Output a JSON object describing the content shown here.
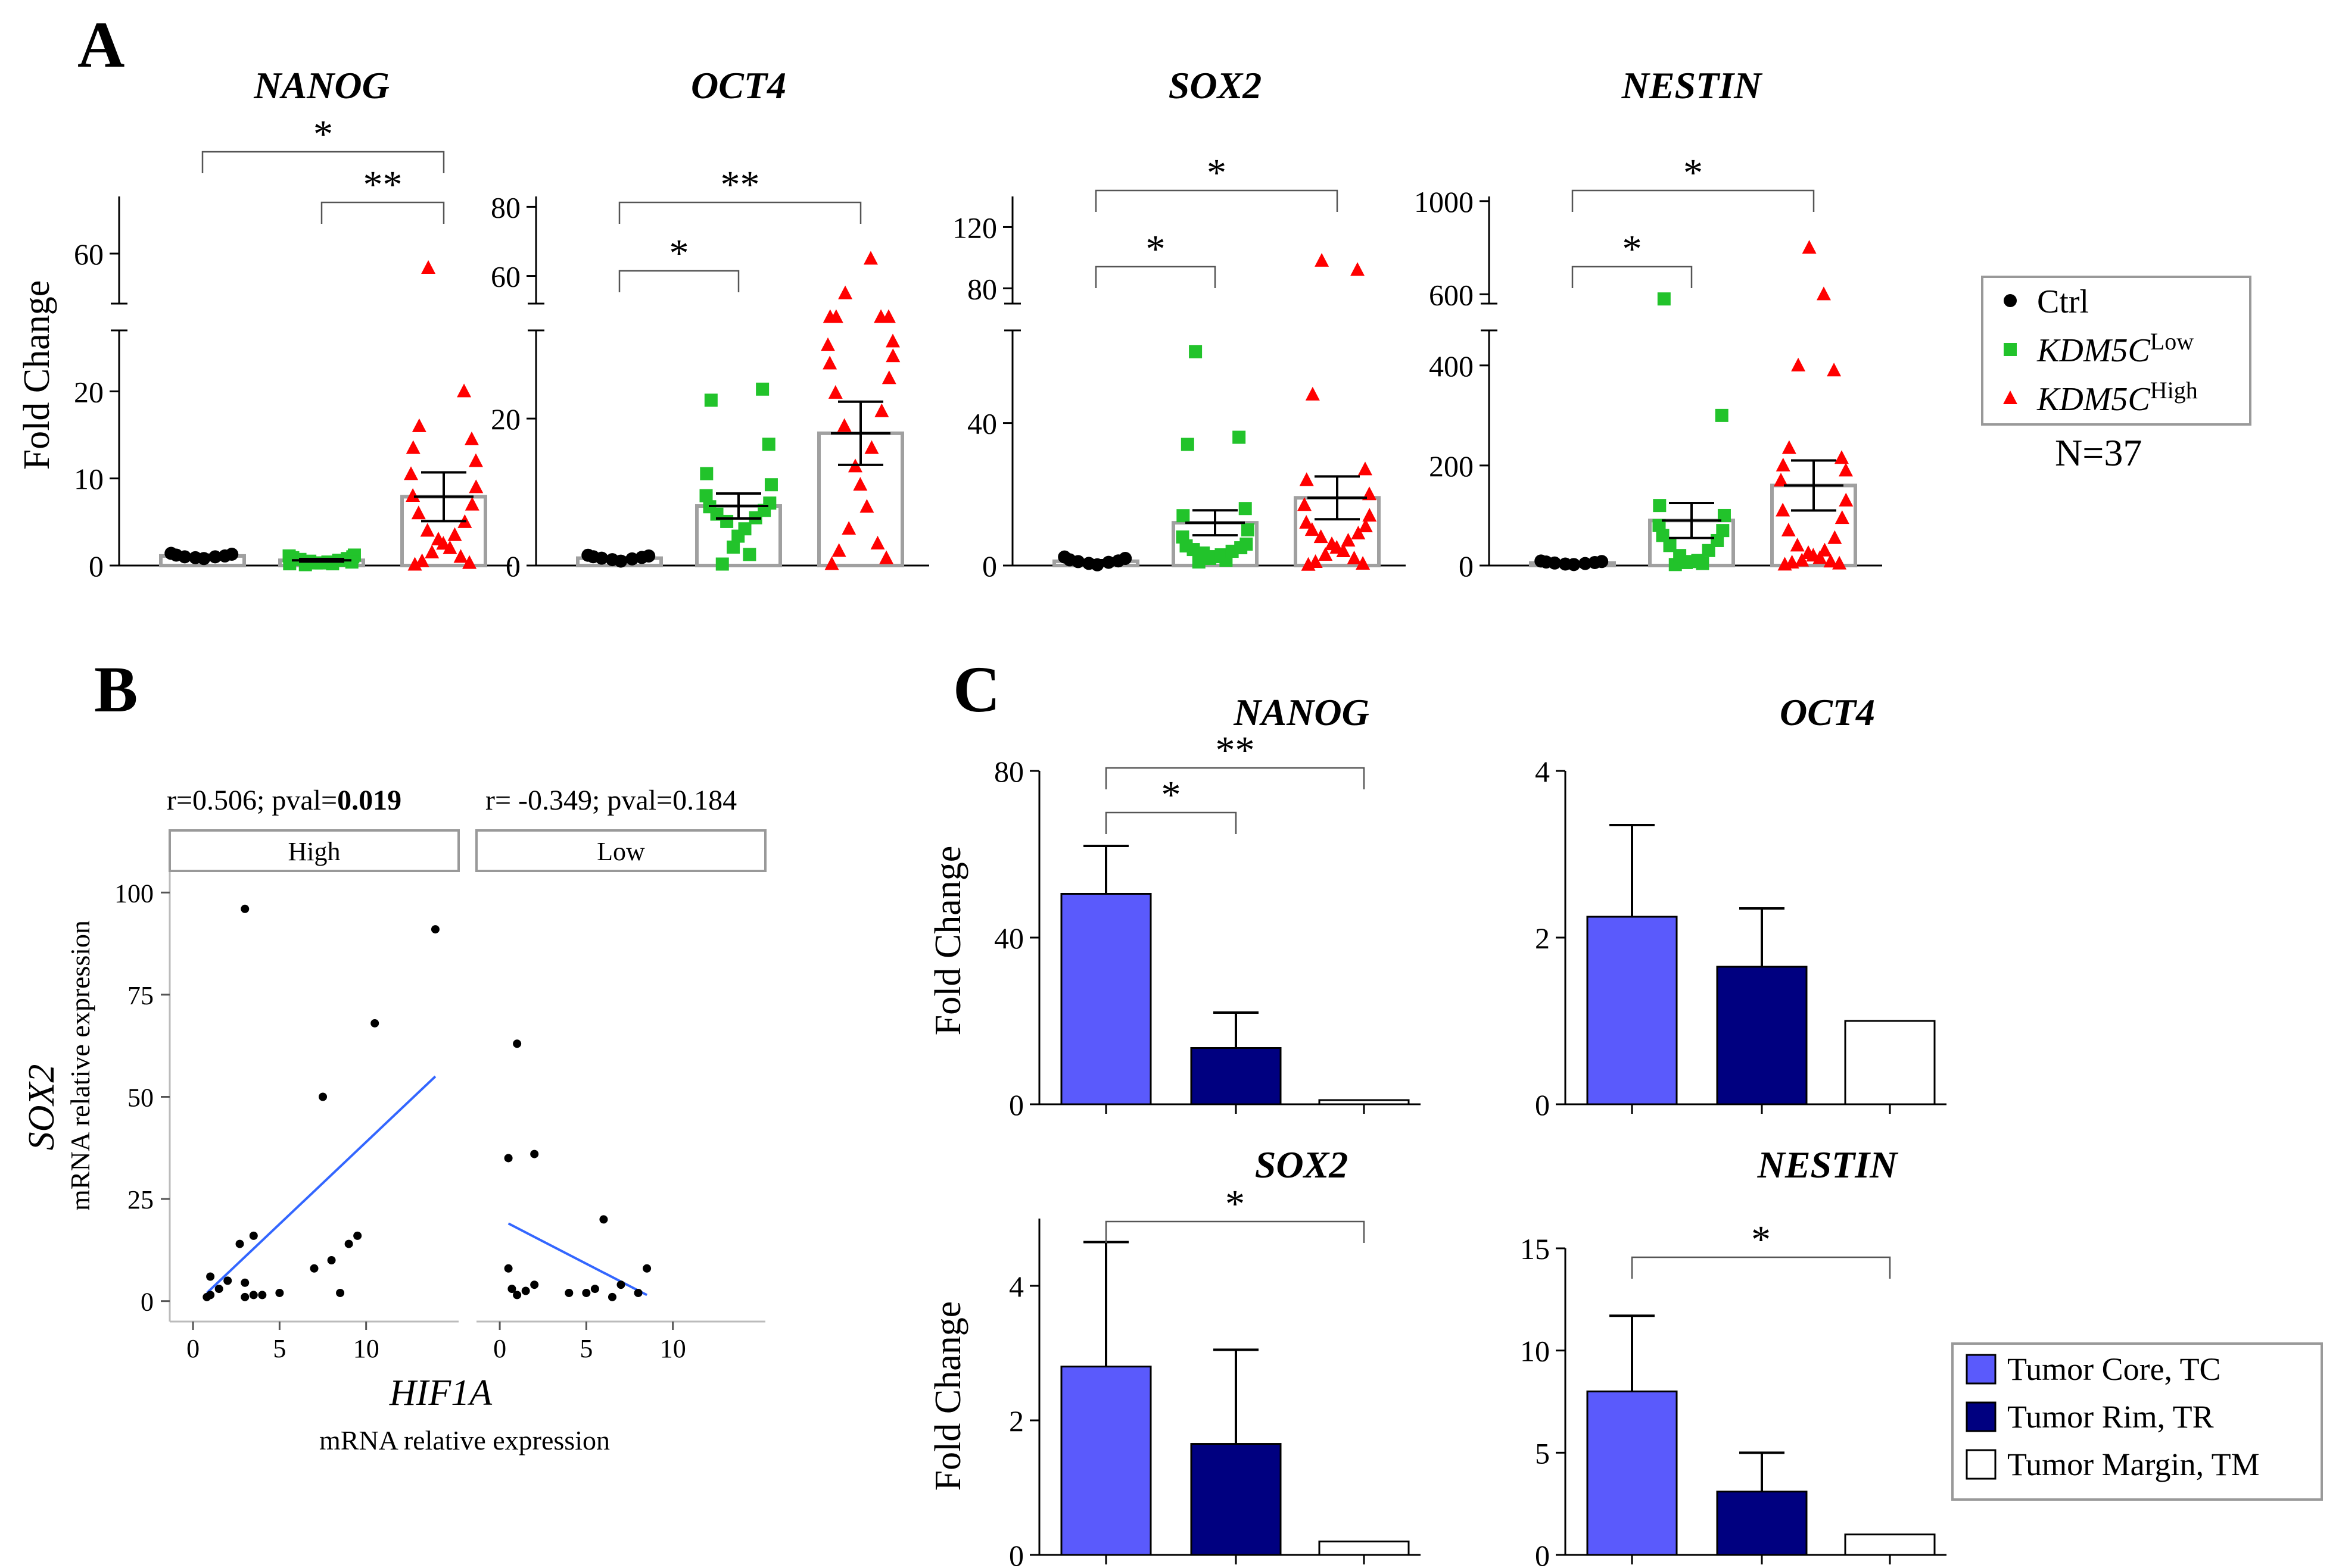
{
  "panelA": {
    "letter": "A",
    "ylabel": "Fold Change",
    "groups": [
      "Ctrl",
      "KDM5C Low",
      "KDM5C High"
    ],
    "legend": {
      "items": [
        {
          "label": "Ctrl",
          "base": "Ctrl",
          "sup": "",
          "marker": "circle",
          "color": "#000000"
        },
        {
          "label": "KDM5C Low",
          "base": "KDM5C",
          "sup": "Low",
          "marker": "square",
          "color": "#22c32b"
        },
        {
          "label": "KDM5C High",
          "base": "KDM5C",
          "sup": "High",
          "marker": "triangle",
          "color": "#ff0000"
        }
      ],
      "n_label": "N=37"
    },
    "charts": [
      {
        "title": "NANOG",
        "lower": {
          "range": [
            0,
            27
          ],
          "ticks": [
            0,
            10,
            20
          ]
        },
        "upper": {
          "range": [
            53,
            68
          ],
          "ticks": [
            60
          ]
        },
        "bar_means": [
          1.1,
          0.6,
          7.9
        ],
        "sem": [
          0.15,
          0.15,
          2.8
        ],
        "points": [
          [
            0.8,
            0.9,
            1.0,
            1.0,
            1.1,
            1.2,
            1.3,
            1.4
          ],
          [
            0.1,
            0.2,
            0.3,
            0.3,
            0.4,
            0.5,
            0.6,
            0.7,
            0.8,
            0.9,
            1.0,
            1.1,
            1.2,
            0.2,
            0.4
          ],
          [
            0.1,
            0.3,
            0.5,
            1.0,
            1.5,
            2.0,
            2.5,
            3.0,
            3.5,
            4.0,
            5.0,
            6.0,
            7.0,
            8.0,
            9.0,
            10.5,
            12.0,
            13.5,
            14.5,
            16.0,
            20.0,
            58.0
          ]
        ],
        "brackets": [
          {
            "from": 0,
            "to": 2,
            "label": "*"
          },
          {
            "from": 1,
            "to": 2,
            "label": "**"
          }
        ]
      },
      {
        "title": "OCT4",
        "lower": {
          "range": [
            0,
            32
          ],
          "ticks": [
            0,
            20
          ]
        },
        "upper": {
          "range": [
            52,
            83
          ],
          "ticks": [
            60,
            80
          ]
        },
        "bar_means": [
          1.0,
          8.1,
          18.0
        ],
        "sem": [
          0.1,
          1.7,
          4.3
        ],
        "points": [
          [
            0.6,
            0.8,
            0.9,
            1.0,
            1.1,
            1.2,
            1.3,
            1.4
          ],
          [
            0.2,
            1.5,
            2.5,
            4.0,
            5.0,
            6.0,
            6.5,
            7.0,
            7.5,
            8.0,
            8.5,
            9.5,
            11.0,
            12.5,
            16.5,
            22.5,
            24.0
          ],
          [
            0.2,
            1.0,
            2.0,
            3.0,
            5.0,
            8.0,
            11.0,
            13.5,
            16.0,
            19.0,
            21.0,
            23.5,
            25.5,
            27.5,
            28.5,
            30.0,
            30.5,
            33.0,
            35.0,
            43.0,
            50.0,
            55.0,
            65.0
          ]
        ],
        "brackets": [
          {
            "from": 0,
            "to": 1,
            "label": "*"
          },
          {
            "from": 0,
            "to": 2,
            "label": "**"
          }
        ]
      },
      {
        "title": "SOX2",
        "lower": {
          "range": [
            0,
            66
          ],
          "ticks": [
            0,
            40
          ]
        },
        "upper": {
          "range": [
            70,
            140
          ],
          "ticks": [
            80,
            120
          ]
        },
        "bar_means": [
          1.2,
          12.0,
          19.0
        ],
        "sem": [
          0.3,
          3.5,
          6.0
        ],
        "points": [
          [
            0.2,
            0.6,
            0.9,
            1.1,
            1.3,
            1.6,
            2.0,
            2.4
          ],
          [
            1.0,
            1.5,
            2.0,
            2.5,
            3.0,
            3.5,
            4.0,
            4.5,
            5.0,
            5.5,
            6.0,
            8.0,
            10.0,
            14.0,
            16.0,
            34.0,
            36.0,
            60.0
          ],
          [
            0.2,
            0.5,
            1.0,
            2.0,
            3.0,
            4.0,
            5.0,
            6.0,
            7.0,
            8.0,
            9.0,
            10.0,
            11.0,
            12.0,
            14.0,
            17.0,
            20.0,
            24.0,
            27.0,
            48.0,
            92.0,
            98.0
          ]
        ],
        "brackets": [
          {
            "from": 0,
            "to": 1,
            "label": "*"
          },
          {
            "from": 0,
            "to": 2,
            "label": "*"
          }
        ]
      },
      {
        "title": "NESTIN",
        "lower": {
          "range": [
            0,
            470
          ],
          "ticks": [
            0,
            200,
            400
          ]
        },
        "upper": {
          "range": [
            560,
            1020
          ],
          "ticks": [
            600,
            1000
          ]
        },
        "bar_means": [
          5,
          90,
          160
        ],
        "sem": [
          1,
          35,
          50
        ],
        "points": [
          [
            2,
            3,
            4,
            5,
            6,
            7,
            8,
            9
          ],
          [
            2,
            4,
            6,
            8,
            10,
            20,
            30,
            40,
            50,
            60,
            70,
            80,
            100,
            120,
            300,
            580
          ],
          [
            2,
            4,
            6,
            8,
            10,
            15,
            20,
            25,
            30,
            40,
            55,
            70,
            95,
            110,
            130,
            170,
            190,
            200,
            215,
            235,
            390,
            400,
            600,
            800
          ]
        ],
        "brackets": [
          {
            "from": 0,
            "to": 1,
            "label": "*"
          },
          {
            "from": 0,
            "to": 2,
            "label": "*"
          }
        ]
      }
    ]
  },
  "panelB": {
    "letter": "B",
    "stats": [
      {
        "prefix": "r=0.506; pval=",
        "bold": "0.019"
      },
      {
        "prefix": "r= -0.349; pval=0.184",
        "bold": ""
      }
    ],
    "facets": [
      "High",
      "Low"
    ],
    "y_label_gene": "SOX2",
    "y_label_sub": "mRNA relative expression",
    "x_label_gene": "HIF1A",
    "x_label_sub": "mRNA relative expression",
    "y_ticks": [
      0,
      25,
      50,
      75,
      100
    ],
    "x_ticks": [
      0,
      5,
      10
    ],
    "y_range": [
      -5,
      105
    ],
    "x_range": [
      -1,
      15
    ],
    "high_points": [
      [
        0.8,
        1.0
      ],
      [
        1.0,
        1.5
      ],
      [
        1.0,
        6.0
      ],
      [
        1.5,
        3.0
      ],
      [
        2.0,
        5.0
      ],
      [
        2.7,
        14.0
      ],
      [
        3.0,
        4.5
      ],
      [
        3.0,
        1.0
      ],
      [
        3.5,
        16.0
      ],
      [
        3.5,
        1.5
      ],
      [
        4.0,
        1.5
      ],
      [
        5.0,
        2.0
      ],
      [
        3.0,
        96.0
      ],
      [
        7.0,
        8.0
      ],
      [
        7.5,
        50.0
      ],
      [
        8.0,
        10.0
      ],
      [
        8.5,
        2.0
      ],
      [
        9.0,
        14.0
      ],
      [
        9.5,
        16.0
      ],
      [
        10.5,
        68.0
      ],
      [
        14.0,
        91.0
      ]
    ],
    "high_fit": [
      [
        0.8,
        2.0
      ],
      [
        14.0,
        55.0
      ]
    ],
    "low_points": [
      [
        0.5,
        8.0
      ],
      [
        0.5,
        35.0
      ],
      [
        0.7,
        3.0
      ],
      [
        1.0,
        63.0
      ],
      [
        1.0,
        1.5
      ],
      [
        1.5,
        2.5
      ],
      [
        2.0,
        36.0
      ],
      [
        2.0,
        4.0
      ],
      [
        4.0,
        2.0
      ],
      [
        5.0,
        2.0
      ],
      [
        5.5,
        3.0
      ],
      [
        6.0,
        20.0
      ],
      [
        6.5,
        1.0
      ],
      [
        7.0,
        4.0
      ],
      [
        8.0,
        2.0
      ],
      [
        8.5,
        8.0
      ]
    ],
    "low_fit": [
      [
        0.5,
        19.0
      ],
      [
        8.5,
        1.5
      ]
    ]
  },
  "panelC": {
    "letter": "C",
    "ylabel": "Fold Change",
    "categories": [
      "Tumor Core, TC",
      "Tumor Rim, TR",
      "Tumor Margin, TM"
    ],
    "colors": [
      "#5a5afc",
      "#000080",
      "#ffffff"
    ],
    "charts": [
      {
        "title": "NANOG",
        "range": [
          0,
          80
        ],
        "ticks": [
          0,
          40,
          80
        ],
        "values": [
          50.5,
          13.5,
          1.0
        ],
        "errors": [
          11.5,
          8.5,
          0
        ],
        "brackets": [
          {
            "from": 0,
            "to": 1,
            "label": "*"
          },
          {
            "from": 0,
            "to": 2,
            "label": "**"
          }
        ]
      },
      {
        "title": "OCT4",
        "range": [
          0,
          4
        ],
        "ticks": [
          0,
          2,
          4
        ],
        "values": [
          2.25,
          1.65,
          1.0
        ],
        "errors": [
          1.1,
          0.7,
          0
        ],
        "brackets": []
      },
      {
        "title": "SOX2",
        "range": [
          0,
          5
        ],
        "ticks": [
          0,
          2,
          4
        ],
        "values": [
          2.8,
          1.65,
          0.2
        ],
        "errors": [
          1.85,
          1.4,
          0
        ],
        "brackets": [
          {
            "from": 0,
            "to": 2,
            "label": "*"
          }
        ]
      },
      {
        "title": "NESTIN",
        "range": [
          0,
          15
        ],
        "ticks": [
          0,
          5,
          10,
          15
        ],
        "values": [
          8.0,
          3.1,
          1.0
        ],
        "errors": [
          3.7,
          1.9,
          0
        ],
        "brackets": [
          {
            "from": 0,
            "to": 2,
            "label": "*"
          }
        ]
      }
    ]
  }
}
